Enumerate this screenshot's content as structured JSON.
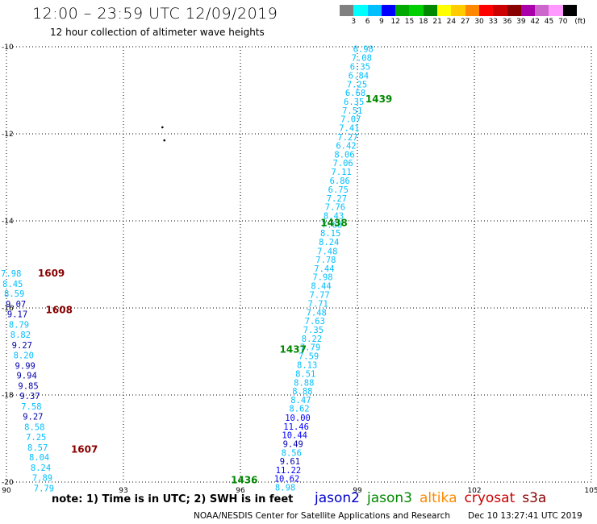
{
  "header": {
    "title": "12:00 – 23:59 UTC 12/09/2019",
    "subtitle": "12 hour collection of altimeter wave heights"
  },
  "legend": {
    "swatches": [
      "#808080",
      "#00ffff",
      "#00bfff",
      "#0000ff",
      "#00aa00",
      "#00d000",
      "#008800",
      "#ffff00",
      "#ffcc00",
      "#ff8800",
      "#ff0000",
      "#cc0000",
      "#880000",
      "#aa00aa",
      "#cc66cc",
      "#ff99ff",
      "#000000"
    ],
    "labels": [
      "3",
      "6",
      "9",
      "12",
      "15",
      "18",
      "21",
      "24",
      "27",
      "30",
      "33",
      "36",
      "39",
      "42",
      "45",
      "70",
      "(ft)"
    ]
  },
  "footer": {
    "note": "note: 1) Time is in UTC; 2) SWH is in feet",
    "satellites": [
      {
        "name": "jason2",
        "color": "#0000cc"
      },
      {
        "name": "jason3",
        "color": "#008800"
      },
      {
        "name": "altika",
        "color": "#ff8800"
      },
      {
        "name": "cryosat",
        "color": "#cc0000"
      },
      {
        "name": "s3a",
        "color": "#880000"
      }
    ],
    "credit": "NOAA/NESDIS Center for Satellite Applications and Research",
    "timestamp": "Dec 10 13:27:41 UTC 2019"
  },
  "chart_data": {
    "type": "scatter",
    "title": "12:00 – 23:59 UTC 12/09/2019",
    "xlabel": "",
    "ylabel": "",
    "xlim": [
      90,
      105
    ],
    "ylim": [
      -20,
      -10
    ],
    "xticks": [
      "90",
      "93",
      "96",
      "99",
      "102",
      "105"
    ],
    "yticks": [
      "-10",
      "-12",
      "-14",
      "-16",
      "-18",
      "-20"
    ],
    "grid": true,
    "point_marks": [
      {
        "x": 94.0,
        "y": -11.85,
        "color": "#000000"
      },
      {
        "x": 94.05,
        "y": -12.15,
        "color": "#000000"
      }
    ],
    "series": [
      {
        "name": "jason3",
        "label_color": "#008800",
        "time_labels": [
          {
            "text": "1439",
            "x": 99.55,
            "y": -11.2
          },
          {
            "text": "1438",
            "x": 98.4,
            "y": -14.05
          },
          {
            "text": "1437",
            "x": 97.35,
            "y": -16.95
          },
          {
            "text": "1436",
            "x": 96.1,
            "y": -19.95
          }
        ],
        "points": [
          {
            "x": 99.15,
            "y": -10.05,
            "v": "6.98",
            "c": "#00bfff"
          },
          {
            "x": 99.11,
            "y": -10.25,
            "v": "7.08",
            "c": "#00bfff"
          },
          {
            "x": 99.07,
            "y": -10.45,
            "v": "6.35",
            "c": "#00bfff"
          },
          {
            "x": 99.03,
            "y": -10.66,
            "v": "6.84",
            "c": "#00bfff"
          },
          {
            "x": 98.99,
            "y": -10.86,
            "v": "7.25",
            "c": "#00bfff"
          },
          {
            "x": 98.95,
            "y": -11.06,
            "v": "6.68",
            "c": "#00bfff"
          },
          {
            "x": 98.91,
            "y": -11.26,
            "v": "6.35",
            "c": "#00bfff"
          },
          {
            "x": 98.87,
            "y": -11.46,
            "v": "7.51",
            "c": "#00bfff"
          },
          {
            "x": 98.83,
            "y": -11.66,
            "v": "7.07",
            "c": "#00bfff"
          },
          {
            "x": 98.79,
            "y": -11.86,
            "v": "7.41",
            "c": "#00bfff"
          },
          {
            "x": 98.75,
            "y": -12.07,
            "v": "7.27",
            "c": "#00bfff"
          },
          {
            "x": 98.71,
            "y": -12.27,
            "v": "6.42",
            "c": "#00bfff"
          },
          {
            "x": 98.67,
            "y": -12.47,
            "v": "8.06",
            "c": "#00bfff"
          },
          {
            "x": 98.63,
            "y": -12.67,
            "v": "7.06",
            "c": "#00bfff"
          },
          {
            "x": 98.59,
            "y": -12.87,
            "v": "7.11",
            "c": "#00bfff"
          },
          {
            "x": 98.55,
            "y": -13.07,
            "v": "6.86",
            "c": "#00bfff"
          },
          {
            "x": 98.51,
            "y": -13.28,
            "v": "6.75",
            "c": "#00bfff"
          },
          {
            "x": 98.47,
            "y": -13.48,
            "v": "7.27",
            "c": "#00bfff"
          },
          {
            "x": 98.43,
            "y": -13.68,
            "v": "7.76",
            "c": "#00bfff"
          },
          {
            "x": 98.39,
            "y": -13.88,
            "v": "8.43",
            "c": "#00bfff"
          },
          {
            "x": 98.35,
            "y": -14.08,
            "v": "7.68",
            "c": "#00bfff"
          },
          {
            "x": 98.31,
            "y": -14.28,
            "v": "8.15",
            "c": "#00bfff"
          },
          {
            "x": 98.27,
            "y": -14.48,
            "v": "8.24",
            "c": "#00bfff"
          },
          {
            "x": 98.23,
            "y": -14.69,
            "v": "7.48",
            "c": "#00bfff"
          },
          {
            "x": 98.19,
            "y": -14.89,
            "v": "7.78",
            "c": "#00bfff"
          },
          {
            "x": 98.15,
            "y": -15.09,
            "v": "7.44",
            "c": "#00bfff"
          },
          {
            "x": 98.11,
            "y": -15.29,
            "v": "7.98",
            "c": "#00bfff"
          },
          {
            "x": 98.07,
            "y": -15.49,
            "v": "8.44",
            "c": "#00bfff"
          },
          {
            "x": 98.03,
            "y": -15.69,
            "v": "7.77",
            "c": "#00bfff"
          },
          {
            "x": 97.99,
            "y": -15.9,
            "v": "7.71",
            "c": "#00bfff"
          },
          {
            "x": 97.95,
            "y": -16.1,
            "v": "7.48",
            "c": "#00bfff"
          },
          {
            "x": 97.91,
            "y": -16.3,
            "v": "7.63",
            "c": "#00bfff"
          },
          {
            "x": 97.87,
            "y": -16.5,
            "v": "7.35",
            "c": "#00bfff"
          },
          {
            "x": 97.83,
            "y": -16.7,
            "v": "8.22",
            "c": "#00bfff"
          },
          {
            "x": 97.79,
            "y": -16.9,
            "v": "7.79",
            "c": "#00bfff"
          },
          {
            "x": 97.75,
            "y": -17.1,
            "v": "7.59",
            "c": "#00bfff"
          },
          {
            "x": 97.71,
            "y": -17.31,
            "v": "8.13",
            "c": "#00bfff"
          },
          {
            "x": 97.67,
            "y": -17.51,
            "v": "8.51",
            "c": "#00bfff"
          },
          {
            "x": 97.63,
            "y": -17.71,
            "v": "8.88",
            "c": "#00bfff"
          },
          {
            "x": 97.59,
            "y": -17.91,
            "v": "8.88",
            "c": "#00bfff"
          },
          {
            "x": 97.55,
            "y": -18.11,
            "v": "8.47",
            "c": "#00bfff"
          },
          {
            "x": 97.51,
            "y": -18.31,
            "v": "8.62",
            "c": "#00bfff"
          },
          {
            "x": 97.47,
            "y": -18.52,
            "v": "10.00",
            "c": "#0000ff"
          },
          {
            "x": 97.43,
            "y": -18.72,
            "v": "11.46",
            "c": "#0000ff"
          },
          {
            "x": 97.39,
            "y": -18.92,
            "v": "10.44",
            "c": "#0000ff"
          },
          {
            "x": 97.35,
            "y": -19.12,
            "v": "9.49",
            "c": "#0000aa"
          },
          {
            "x": 97.31,
            "y": -19.32,
            "v": "8.56",
            "c": "#00bfff"
          },
          {
            "x": 97.27,
            "y": -19.52,
            "v": "9.61",
            "c": "#0000aa"
          },
          {
            "x": 97.23,
            "y": -19.72,
            "v": "11.22",
            "c": "#0000ff"
          },
          {
            "x": 97.19,
            "y": -19.92,
            "v": "10.62",
            "c": "#0000ff"
          },
          {
            "x": 97.15,
            "y": -20.12,
            "v": "8.98",
            "c": "#00bfff"
          }
        ]
      },
      {
        "name": "s3a",
        "label_color": "#880000",
        "time_labels": [
          {
            "text": "1609",
            "x": 91.15,
            "y": -15.2
          },
          {
            "text": "1608",
            "x": 91.35,
            "y": -16.05
          },
          {
            "text": "1607",
            "x": 92.0,
            "y": -19.25
          }
        ],
        "points": [
          {
            "x": 90.12,
            "y": -15.2,
            "v": "7.98",
            "c": "#00bfff"
          },
          {
            "x": 90.16,
            "y": -15.44,
            "v": "8.45",
            "c": "#00bfff"
          },
          {
            "x": 90.2,
            "y": -15.67,
            "v": "8.59",
            "c": "#00bfff"
          },
          {
            "x": 90.24,
            "y": -15.91,
            "v": "9.07",
            "c": "#0000aa"
          },
          {
            "x": 90.28,
            "y": -16.14,
            "v": "9.17",
            "c": "#0000aa"
          },
          {
            "x": 90.32,
            "y": -16.38,
            "v": "8.79",
            "c": "#00bfff"
          },
          {
            "x": 90.36,
            "y": -16.61,
            "v": "8.82",
            "c": "#00bfff"
          },
          {
            "x": 90.4,
            "y": -16.85,
            "v": "9.27",
            "c": "#0000aa"
          },
          {
            "x": 90.44,
            "y": -17.08,
            "v": "8.20",
            "c": "#00bfff"
          },
          {
            "x": 90.48,
            "y": -17.32,
            "v": "9.99",
            "c": "#0000aa"
          },
          {
            "x": 90.52,
            "y": -17.55,
            "v": "9.94",
            "c": "#0000aa"
          },
          {
            "x": 90.56,
            "y": -17.79,
            "v": "9.85",
            "c": "#0000aa"
          },
          {
            "x": 90.6,
            "y": -18.02,
            "v": "9.37",
            "c": "#0000aa"
          },
          {
            "x": 90.64,
            "y": -18.26,
            "v": "7.58",
            "c": "#00bfff"
          },
          {
            "x": 90.68,
            "y": -18.49,
            "v": "9.27",
            "c": "#0000aa"
          },
          {
            "x": 90.72,
            "y": -18.73,
            "v": "8.58",
            "c": "#00bfff"
          },
          {
            "x": 90.76,
            "y": -18.96,
            "v": "7.25",
            "c": "#00bfff"
          },
          {
            "x": 90.8,
            "y": -19.2,
            "v": "8.57",
            "c": "#00bfff"
          },
          {
            "x": 90.84,
            "y": -19.43,
            "v": "8.04",
            "c": "#00bfff"
          },
          {
            "x": 90.88,
            "y": -19.67,
            "v": "8.24",
            "c": "#00bfff"
          },
          {
            "x": 90.92,
            "y": -19.9,
            "v": "7.89",
            "c": "#00bfff"
          },
          {
            "x": 90.96,
            "y": -20.14,
            "v": "7.79",
            "c": "#00bfff"
          }
        ]
      }
    ]
  }
}
